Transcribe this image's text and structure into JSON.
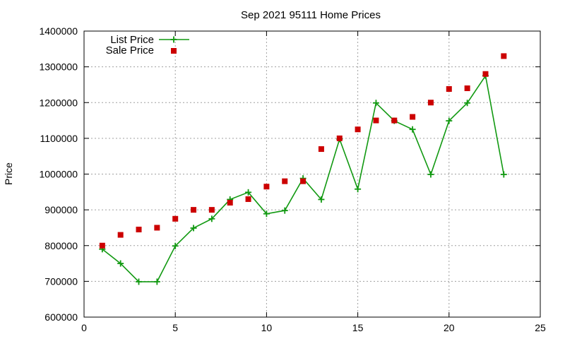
{
  "chart_data": {
    "type": "line",
    "title": "Sep 2021 95111 Home Prices",
    "xlabel": "",
    "ylabel": "Price",
    "xlim": [
      0,
      25
    ],
    "ylim": [
      600000,
      1400000
    ],
    "x_ticks": [
      0,
      5,
      10,
      15,
      20,
      25
    ],
    "y_ticks": [
      600000,
      700000,
      800000,
      900000,
      1000000,
      1100000,
      1200000,
      1300000,
      1400000
    ],
    "x_tick_labels": [
      "0",
      "5",
      "10",
      "15",
      "20",
      "25"
    ],
    "y_tick_labels": [
      "600000",
      "700000",
      "800000",
      "900000",
      "1000000",
      "1100000",
      "1200000",
      "1300000",
      "1400000"
    ],
    "grid": true,
    "legend_position": "top-left",
    "series": [
      {
        "name": "List Price",
        "style": "line-with-plus-markers",
        "color": "#119911",
        "x": [
          1,
          2,
          3,
          4,
          5,
          6,
          7,
          8,
          9,
          10,
          11,
          12,
          13,
          14,
          15,
          16,
          17,
          18,
          19,
          20,
          21,
          22,
          23
        ],
        "y": [
          790000,
          750000,
          699000,
          699000,
          799000,
          849000,
          875000,
          929000,
          949000,
          889000,
          898000,
          988000,
          929000,
          1098000,
          958000,
          1199000,
          1149000,
          1125000,
          999000,
          1149000,
          1199000,
          1275000,
          999000
        ]
      },
      {
        "name": "Sale Price",
        "style": "square-markers",
        "color": "#cc0000",
        "x": [
          1,
          2,
          3,
          4,
          5,
          6,
          7,
          8,
          9,
          10,
          11,
          12,
          13,
          14,
          15,
          16,
          17,
          18,
          19,
          20,
          21,
          22,
          23
        ],
        "y": [
          800000,
          830000,
          845000,
          850000,
          875000,
          900000,
          900000,
          920000,
          930000,
          965000,
          980000,
          980000,
          1070000,
          1100000,
          1125000,
          1150000,
          1150000,
          1160000,
          1200000,
          1238000,
          1240000,
          1280000,
          1330000
        ]
      }
    ]
  }
}
